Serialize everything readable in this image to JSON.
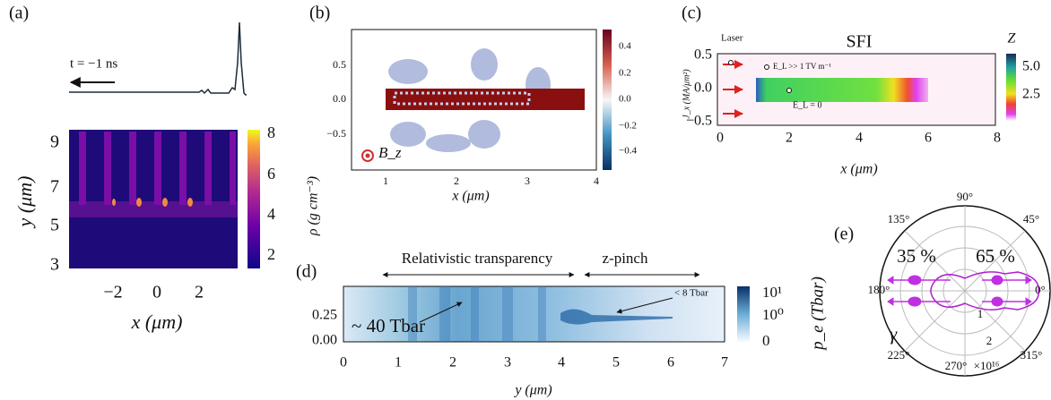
{
  "panel_a": {
    "label": "(a)",
    "annotation": "t = −1 ns",
    "x_label": "x (μm)",
    "y_label": "y (μm)",
    "x_ticks": [
      "−2",
      "0",
      "2"
    ],
    "y_ticks": [
      "3",
      "5",
      "7",
      "9"
    ],
    "colorbar_ticks": [
      "2",
      "4",
      "6",
      "8"
    ],
    "colorbar_label": "ρ (g cm⁻³)"
  },
  "panel_b": {
    "label": "(b)",
    "x_label": "x (μm)",
    "x_ticks": [
      "1",
      "2",
      "3",
      "4"
    ],
    "y_ticks": [
      "0.5",
      "0.0",
      "−0.5"
    ],
    "colorbar_ticks": [
      "0.4",
      "0.2",
      "0.0",
      "−0.2",
      "−0.4"
    ],
    "annotation": "B_z"
  },
  "panel_c": {
    "label": "(c)",
    "title": "SFI",
    "x_label": "x (μm)",
    "y_label": "J_x (MA/μm²)",
    "x_ticks": [
      "0",
      "2",
      "4",
      "6",
      "8"
    ],
    "y_ticks": [
      "0.5",
      "0.0",
      "−0.5"
    ],
    "colorbar_title": "Z",
    "colorbar_ticks": [
      "5.0",
      "2.5"
    ],
    "annotations": [
      "Laser",
      "E_L >> 1 TV m⁻¹",
      "E_L = 0"
    ]
  },
  "panel_d": {
    "label": "(d)",
    "x_label": "y (μm)",
    "x_ticks": [
      "0",
      "1",
      "2",
      "3",
      "4",
      "5",
      "6",
      "7"
    ],
    "y_ticks": [
      "0.25",
      "0.00"
    ],
    "colorbar_ticks": [
      "10¹",
      "10⁰",
      "0"
    ],
    "colorbar_label": "p_e (Tbar)",
    "regions": [
      "Relativistic transparency",
      "z-pinch"
    ],
    "annotations": [
      "~ 40 Tbar",
      "< 8 Tbar"
    ]
  },
  "panel_e": {
    "label": "(e)",
    "angle_labels": [
      "90°",
      "45°",
      "0°",
      "315°",
      "270°",
      "225°",
      "180°",
      "135°"
    ],
    "scale_note": "×10¹⁶",
    "radial_ticks": [
      "1",
      "2"
    ],
    "fractions": [
      "35 %",
      "65 %"
    ],
    "species": "γ"
  }
}
